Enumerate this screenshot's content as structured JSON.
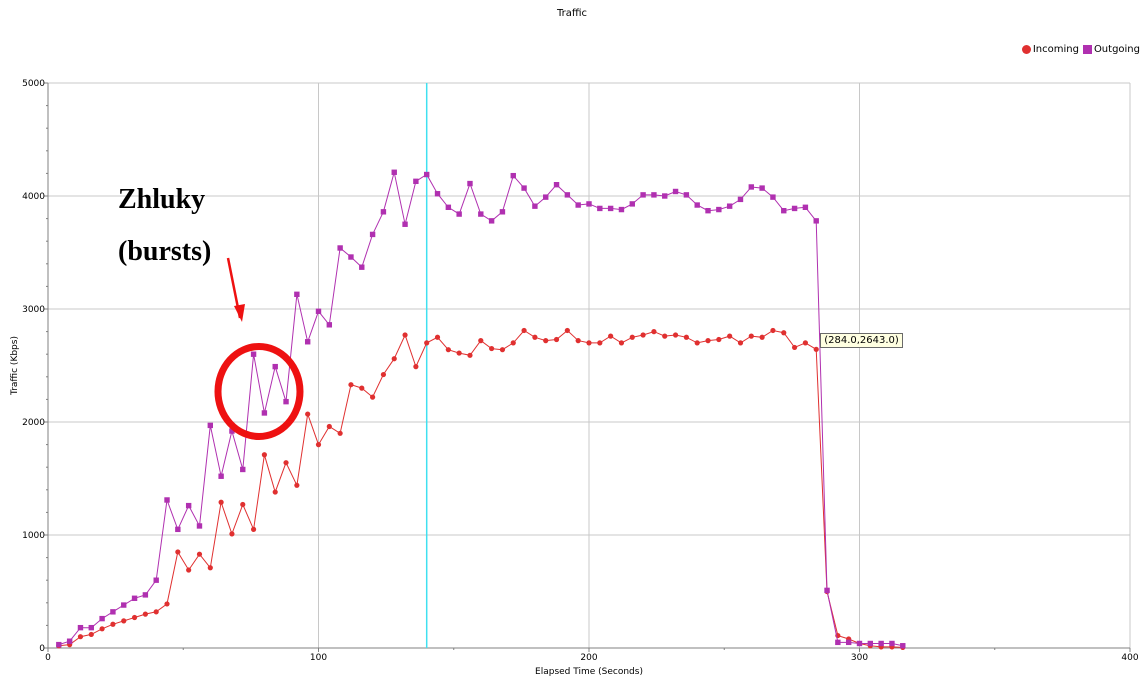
{
  "chart_data": {
    "type": "line",
    "title": "Traffic",
    "xlabel": "Elapsed Time (Seconds)",
    "ylabel": "Traffic (Kbps)",
    "xlim": [
      0,
      400
    ],
    "ylim": [
      0,
      5000
    ],
    "x_ticks": [
      0,
      100,
      200,
      300,
      400
    ],
    "y_ticks": [
      0,
      1000,
      2000,
      3000,
      4000,
      5000
    ],
    "grid": true,
    "legend_position": "top-right",
    "vertical_marker_x": 140,
    "series": [
      {
        "name": "Incoming",
        "color": "#e03030",
        "marker": "circle",
        "points": [
          [
            4,
            20
          ],
          [
            8,
            30
          ],
          [
            12,
            100
          ],
          [
            16,
            120
          ],
          [
            20,
            170
          ],
          [
            24,
            210
          ],
          [
            28,
            240
          ],
          [
            32,
            270
          ],
          [
            36,
            300
          ],
          [
            40,
            320
          ],
          [
            44,
            390
          ],
          [
            48,
            850
          ],
          [
            52,
            690
          ],
          [
            56,
            830
          ],
          [
            60,
            710
          ],
          [
            64,
            1290
          ],
          [
            68,
            1010
          ],
          [
            72,
            1270
          ],
          [
            76,
            1050
          ],
          [
            80,
            1710
          ],
          [
            84,
            1380
          ],
          [
            88,
            1640
          ],
          [
            92,
            1440
          ],
          [
            96,
            2070
          ],
          [
            100,
            1800
          ],
          [
            104,
            1960
          ],
          [
            108,
            1900
          ],
          [
            112,
            2330
          ],
          [
            116,
            2300
          ],
          [
            120,
            2220
          ],
          [
            124,
            2420
          ],
          [
            128,
            2560
          ],
          [
            132,
            2770
          ],
          [
            136,
            2490
          ],
          [
            140,
            2700
          ],
          [
            144,
            2750
          ],
          [
            148,
            2640
          ],
          [
            152,
            2610
          ],
          [
            156,
            2590
          ],
          [
            160,
            2720
          ],
          [
            164,
            2650
          ],
          [
            168,
            2640
          ],
          [
            172,
            2700
          ],
          [
            176,
            2810
          ],
          [
            180,
            2750
          ],
          [
            184,
            2720
          ],
          [
            188,
            2730
          ],
          [
            192,
            2810
          ],
          [
            196,
            2720
          ],
          [
            200,
            2700
          ],
          [
            204,
            2700
          ],
          [
            208,
            2760
          ],
          [
            212,
            2700
          ],
          [
            216,
            2750
          ],
          [
            220,
            2770
          ],
          [
            224,
            2800
          ],
          [
            228,
            2760
          ],
          [
            232,
            2770
          ],
          [
            236,
            2750
          ],
          [
            240,
            2700
          ],
          [
            244,
            2720
          ],
          [
            248,
            2730
          ],
          [
            252,
            2760
          ],
          [
            256,
            2700
          ],
          [
            260,
            2760
          ],
          [
            264,
            2750
          ],
          [
            268,
            2810
          ],
          [
            272,
            2790
          ],
          [
            276,
            2660
          ],
          [
            280,
            2700
          ],
          [
            284,
            2643
          ],
          [
            288,
            500
          ],
          [
            292,
            110
          ],
          [
            296,
            80
          ],
          [
            300,
            40
          ],
          [
            304,
            20
          ],
          [
            308,
            10
          ],
          [
            312,
            10
          ],
          [
            316,
            5
          ]
        ]
      },
      {
        "name": "Outgoing",
        "color": "#b030b0",
        "marker": "square",
        "points": [
          [
            4,
            30
          ],
          [
            8,
            60
          ],
          [
            12,
            180
          ],
          [
            16,
            180
          ],
          [
            20,
            260
          ],
          [
            24,
            320
          ],
          [
            28,
            380
          ],
          [
            32,
            440
          ],
          [
            36,
            470
          ],
          [
            40,
            600
          ],
          [
            44,
            1310
          ],
          [
            48,
            1050
          ],
          [
            52,
            1260
          ],
          [
            56,
            1080
          ],
          [
            60,
            1970
          ],
          [
            64,
            1520
          ],
          [
            68,
            1920
          ],
          [
            72,
            1580
          ],
          [
            76,
            2600
          ],
          [
            80,
            2080
          ],
          [
            84,
            2490
          ],
          [
            88,
            2180
          ],
          [
            92,
            3130
          ],
          [
            96,
            2710
          ],
          [
            100,
            2980
          ],
          [
            104,
            2860
          ],
          [
            108,
            3540
          ],
          [
            112,
            3460
          ],
          [
            116,
            3370
          ],
          [
            120,
            3660
          ],
          [
            124,
            3860
          ],
          [
            128,
            4210
          ],
          [
            132,
            3750
          ],
          [
            136,
            4130
          ],
          [
            140,
            4190
          ],
          [
            144,
            4020
          ],
          [
            148,
            3900
          ],
          [
            152,
            3840
          ],
          [
            156,
            4110
          ],
          [
            160,
            3840
          ],
          [
            164,
            3780
          ],
          [
            168,
            3860
          ],
          [
            172,
            4180
          ],
          [
            176,
            4070
          ],
          [
            180,
            3910
          ],
          [
            184,
            3990
          ],
          [
            188,
            4100
          ],
          [
            192,
            4010
          ],
          [
            196,
            3920
          ],
          [
            200,
            3930
          ],
          [
            204,
            3890
          ],
          [
            208,
            3890
          ],
          [
            212,
            3880
          ],
          [
            216,
            3930
          ],
          [
            220,
            4010
          ],
          [
            224,
            4010
          ],
          [
            228,
            4000
          ],
          [
            232,
            4040
          ],
          [
            236,
            4010
          ],
          [
            240,
            3920
          ],
          [
            244,
            3870
          ],
          [
            248,
            3880
          ],
          [
            252,
            3910
          ],
          [
            256,
            3970
          ],
          [
            260,
            4080
          ],
          [
            264,
            4070
          ],
          [
            268,
            3990
          ],
          [
            272,
            3870
          ],
          [
            276,
            3890
          ],
          [
            280,
            3900
          ],
          [
            284,
            3780
          ],
          [
            288,
            510
          ],
          [
            292,
            50
          ],
          [
            296,
            50
          ],
          [
            300,
            40
          ],
          [
            304,
            40
          ],
          [
            308,
            40
          ],
          [
            312,
            40
          ],
          [
            316,
            20
          ]
        ]
      }
    ],
    "annotations": {
      "tooltip": "(284.0,2643.0)",
      "callout_line1": "Zhluky",
      "callout_line2": "(bursts)",
      "highlight_circle_center": [
        78,
        2270
      ]
    }
  }
}
